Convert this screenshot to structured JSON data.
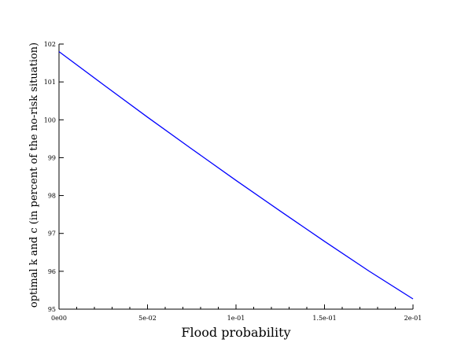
{
  "chart_data": {
    "type": "line",
    "title": "",
    "xlabel": "Flood probability",
    "ylabel": "optimal k and c (in percent of the no-risk situation)",
    "xlim": [
      0,
      0.2
    ],
    "ylim": [
      95,
      102
    ],
    "x_ticks": [
      {
        "value": 0,
        "label": "0e00"
      },
      {
        "value": 0.05,
        "label": "5e-02"
      },
      {
        "value": 0.1,
        "label": "1e-01"
      },
      {
        "value": 0.15,
        "label": "1.5e-01"
      },
      {
        "value": 0.2,
        "label": "2e-01"
      }
    ],
    "y_ticks": [
      {
        "value": 95,
        "label": "95"
      },
      {
        "value": 96,
        "label": "96"
      },
      {
        "value": 97,
        "label": "97"
      },
      {
        "value": 98,
        "label": "98"
      },
      {
        "value": 99,
        "label": "99"
      },
      {
        "value": 100,
        "label": "100"
      },
      {
        "value": 101,
        "label": "101"
      },
      {
        "value": 102,
        "label": "102"
      }
    ],
    "grid": false,
    "series": [
      {
        "color": "#0000ff",
        "x": [
          0,
          0.025,
          0.05,
          0.075,
          0.1,
          0.125,
          0.15,
          0.175,
          0.2
        ],
        "y": [
          101.8,
          100.93,
          100.07,
          99.23,
          98.4,
          97.59,
          96.79,
          96.01,
          95.27
        ]
      }
    ]
  }
}
